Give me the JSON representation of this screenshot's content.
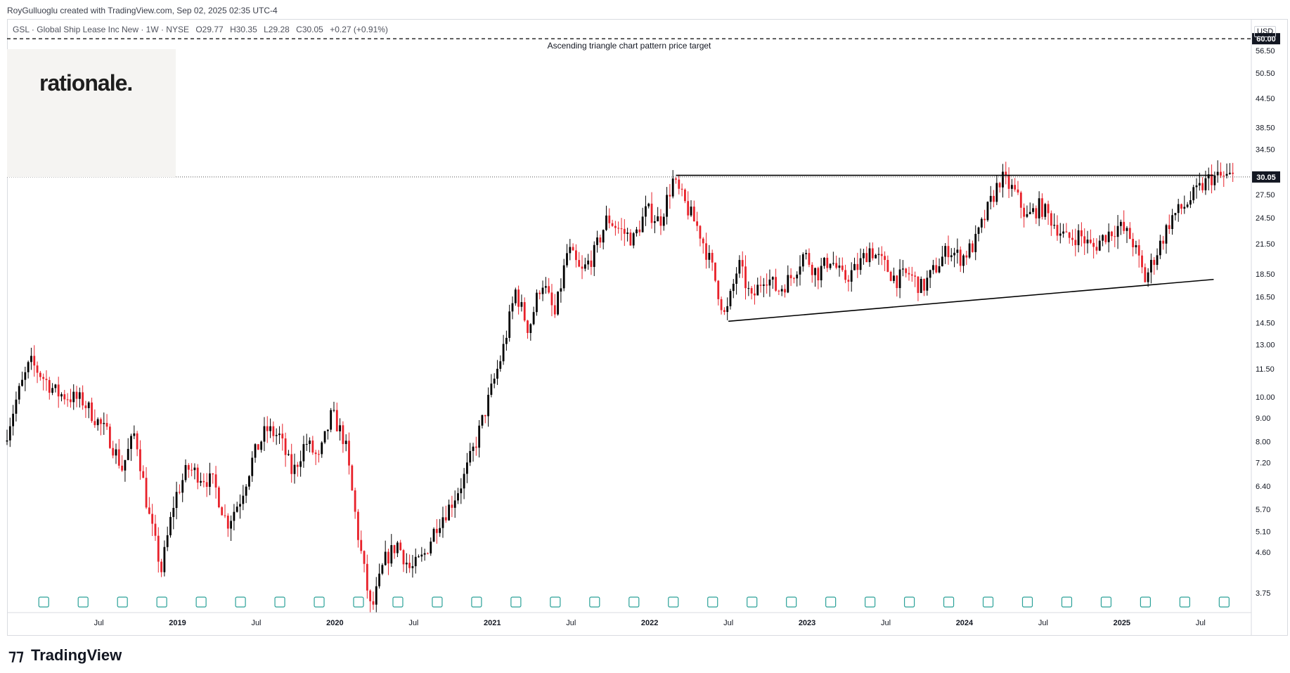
{
  "header": {
    "credit": "RoyGulluoglu created with TradingView.com, Sep 02, 2025 02:35 UTC-4"
  },
  "symbol": {
    "name": "GSL · Global Ship Lease Inc New · 1W · NYSE",
    "open": "O29.77",
    "high": "H30.35",
    "low": "L29.28",
    "close": "C30.05",
    "change": "+0.27 (+0.91%)"
  },
  "logo": {
    "text": "rationale."
  },
  "footer": {
    "brand": "TradingView"
  },
  "axis": {
    "currency": "USD"
  },
  "colors": {
    "up": "#000000",
    "down": "#e8212a",
    "text": "#131722",
    "grid": "#e0e3eb",
    "earnings": "#2aa198",
    "dividend": "#2962ff"
  },
  "chart_data": {
    "type": "candlestick",
    "title": "",
    "yscale": "log",
    "ylim": [
      3.4,
      66
    ],
    "y_ticks": [
      "3.75",
      "4.60",
      "5.10",
      "5.70",
      "6.40",
      "7.20",
      "8.00",
      "9.00",
      "10.00",
      "11.50",
      "13.00",
      "14.50",
      "16.50",
      "18.50",
      "21.50",
      "24.50",
      "27.50",
      "34.50",
      "38.50",
      "44.50",
      "50.50",
      "56.50"
    ],
    "x_ticks": [
      "Jul",
      "2019",
      "Jul",
      "2020",
      "Jul",
      "2021",
      "Jul",
      "2022",
      "Jul",
      "2023",
      "Jul",
      "2024",
      "Jul",
      "2025",
      "Jul"
    ],
    "price_labels": [
      {
        "value": 60.0,
        "text": "60.00"
      },
      {
        "value": 30.05,
        "text": "30.05"
      }
    ],
    "annotations": [
      {
        "text": "Ascending triangle chart pattern price target",
        "value": 60.0
      }
    ],
    "trendlines": [
      {
        "name": "resistance",
        "from": [
          "2022-03",
          30.3
        ],
        "to": [
          "2025-08",
          30.3
        ]
      },
      {
        "name": "support",
        "from": [
          "2022-07",
          14.6
        ],
        "to": [
          "2025-08",
          18.0
        ]
      }
    ],
    "series": [
      {
        "name": "GSL",
        "path": [
          [
            "2017-12",
            8.0
          ],
          [
            "2018-01",
            10.0
          ],
          [
            "2018-02",
            11.9
          ],
          [
            "2018-04",
            10.2
          ],
          [
            "2018-06",
            9.8
          ],
          [
            "2018-08",
            8.2
          ],
          [
            "2018-09",
            7.0
          ],
          [
            "2018-10",
            8.4
          ],
          [
            "2018-11",
            5.6
          ],
          [
            "2018-12",
            4.2
          ],
          [
            "2019-01",
            6.0
          ],
          [
            "2019-02",
            7.0
          ],
          [
            "2019-04",
            6.5
          ],
          [
            "2019-05",
            5.3
          ],
          [
            "2019-06",
            6.0
          ],
          [
            "2019-07",
            7.4
          ],
          [
            "2019-08",
            8.5
          ],
          [
            "2019-09",
            8.2
          ],
          [
            "2019-10",
            6.8
          ],
          [
            "2019-11",
            8.0
          ],
          [
            "2019-12",
            7.3
          ],
          [
            "2020-01",
            9.2
          ],
          [
            "2020-02",
            8.0
          ],
          [
            "2020-03",
            5.0
          ],
          [
            "2020-04",
            3.4
          ],
          [
            "2020-05",
            4.4
          ],
          [
            "2020-06",
            4.8
          ],
          [
            "2020-07",
            4.2
          ],
          [
            "2020-08",
            4.5
          ],
          [
            "2020-09",
            5.3
          ],
          [
            "2020-10",
            5.8
          ],
          [
            "2020-11",
            6.6
          ],
          [
            "2020-12",
            8.0
          ],
          [
            "2021-01",
            10.0
          ],
          [
            "2021-02",
            12.5
          ],
          [
            "2021-03",
            17.0
          ],
          [
            "2021-04",
            14.0
          ],
          [
            "2021-05",
            18.0
          ],
          [
            "2021-06",
            15.0
          ],
          [
            "2021-07",
            21.0
          ],
          [
            "2021-08",
            18.5
          ],
          [
            "2021-09",
            20.5
          ],
          [
            "2021-10",
            24.5
          ],
          [
            "2021-11",
            23.0
          ],
          [
            "2021-12",
            22.0
          ],
          [
            "2022-01",
            25.5
          ],
          [
            "2022-02",
            24.0
          ],
          [
            "2022-03",
            29.5
          ],
          [
            "2022-04",
            26.0
          ],
          [
            "2022-05",
            23.0
          ],
          [
            "2022-06",
            19.0
          ],
          [
            "2022-07",
            14.8
          ],
          [
            "2022-08",
            19.5
          ],
          [
            "2022-09",
            16.2
          ],
          [
            "2022-10",
            18.5
          ],
          [
            "2022-11",
            17.0
          ],
          [
            "2022-12",
            18.2
          ],
          [
            "2023-01",
            20.5
          ],
          [
            "2023-02",
            18.5
          ],
          [
            "2023-03",
            20.0
          ],
          [
            "2023-04",
            18.0
          ],
          [
            "2023-05",
            19.0
          ],
          [
            "2023-06",
            21.0
          ],
          [
            "2023-07",
            19.5
          ],
          [
            "2023-08",
            18.0
          ],
          [
            "2023-09",
            18.5
          ],
          [
            "2023-10",
            17.2
          ],
          [
            "2023-11",
            19.0
          ],
          [
            "2023-12",
            21.0
          ],
          [
            "2024-01",
            20.0
          ],
          [
            "2024-02",
            21.5
          ],
          [
            "2024-03",
            25.5
          ],
          [
            "2024-04",
            30.0
          ],
          [
            "2024-05",
            28.0
          ],
          [
            "2024-06",
            24.5
          ],
          [
            "2024-07",
            26.0
          ],
          [
            "2024-08",
            24.0
          ],
          [
            "2024-09",
            22.0
          ],
          [
            "2024-10",
            22.5
          ],
          [
            "2024-11",
            21.0
          ],
          [
            "2024-12",
            22.5
          ],
          [
            "2025-01",
            23.5
          ],
          [
            "2025-02",
            22.0
          ],
          [
            "2025-03",
            18.0
          ],
          [
            "2025-04",
            21.0
          ],
          [
            "2025-05",
            24.5
          ],
          [
            "2025-06",
            26.0
          ],
          [
            "2025-07",
            28.0
          ],
          [
            "2025-08",
            30.0
          ]
        ]
      }
    ]
  }
}
